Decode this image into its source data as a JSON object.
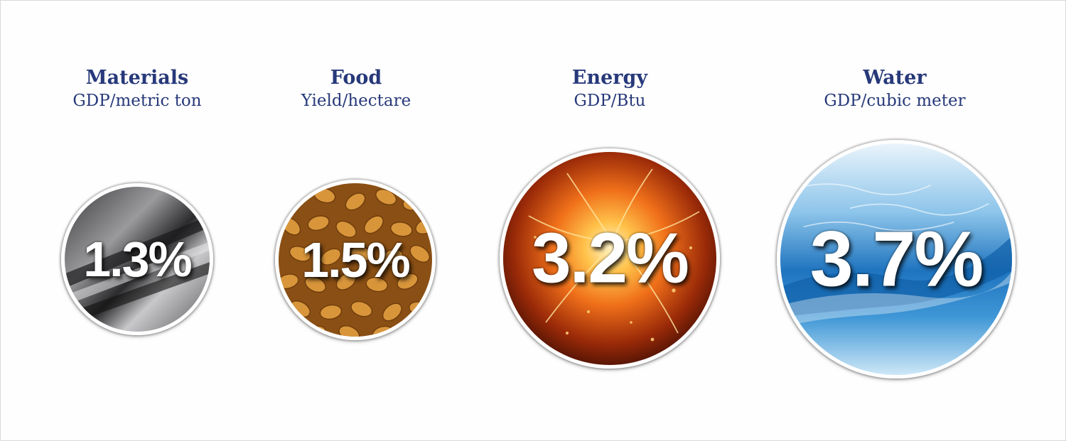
{
  "metrics": [
    {
      "title": "Materials",
      "unit": "GDP/metric ton",
      "value": "1.3%",
      "image": "brushed-steel"
    },
    {
      "title": "Food",
      "unit": "Yield/hectare",
      "value": "1.5%",
      "image": "wheat-grains"
    },
    {
      "title": "Energy",
      "unit": "GDP/Btu",
      "value": "3.2%",
      "image": "fire-explosion"
    },
    {
      "title": "Water",
      "unit": "GDP/cubic meter",
      "value": "3.7%",
      "image": "water-wave"
    }
  ],
  "colors": {
    "heading": "#27397a",
    "value_text": "#ffffff"
  }
}
